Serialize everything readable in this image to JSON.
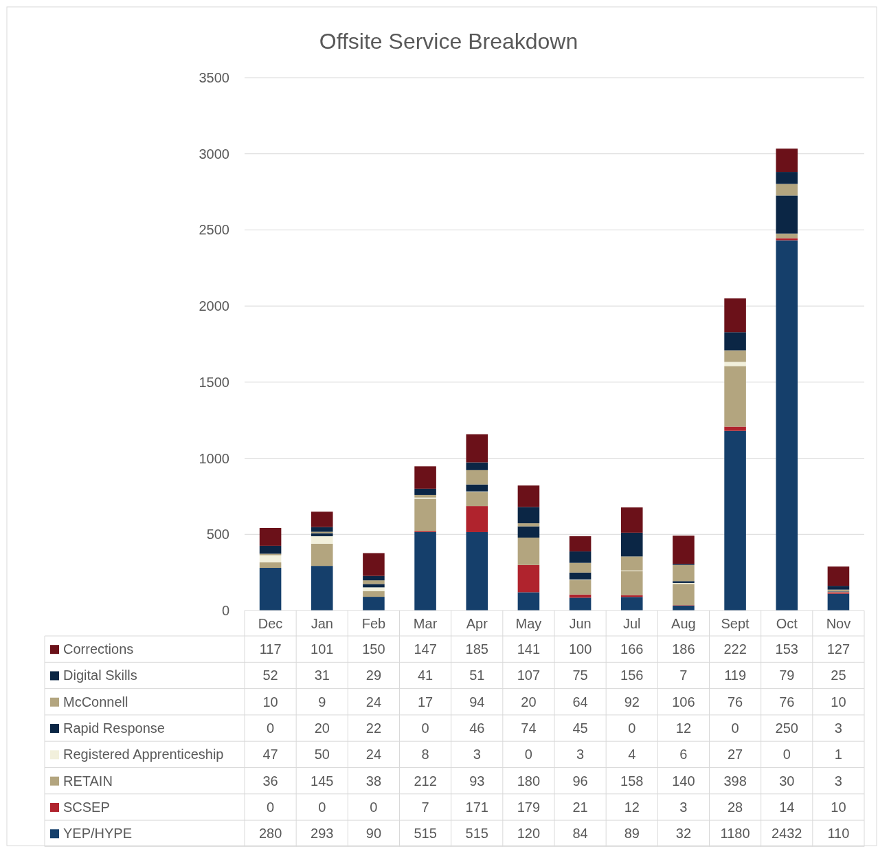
{
  "chart_data": {
    "type": "bar",
    "title": "Offsite Service Breakdown",
    "stacked": true,
    "categories": [
      "Dec",
      "Jan",
      "Feb",
      "Mar",
      "Apr",
      "May",
      "Jun",
      "Jul",
      "Aug",
      "Sept",
      "Oct",
      "Nov"
    ],
    "series": [
      {
        "name": "YEP/HYPE",
        "color": "#153f6b",
        "values": [
          280,
          293,
          90,
          515,
          515,
          120,
          84,
          89,
          32,
          1180,
          2432,
          110
        ]
      },
      {
        "name": "SCSEP",
        "color": "#b0232d",
        "values": [
          0,
          0,
          0,
          7,
          171,
          179,
          21,
          12,
          3,
          28,
          14,
          10
        ]
      },
      {
        "name": "RETAIN",
        "color": "#b3a57f",
        "values": [
          36,
          145,
          38,
          212,
          93,
          180,
          96,
          158,
          140,
          398,
          30,
          3
        ]
      },
      {
        "name": "Registered Apprenticeship",
        "color": "#f2f0dc",
        "values": [
          47,
          50,
          24,
          8,
          3,
          0,
          3,
          4,
          6,
          27,
          0,
          1
        ]
      },
      {
        "name": "Rapid Response",
        "color": "#0b2645",
        "values": [
          0,
          20,
          22,
          0,
          46,
          74,
          45,
          0,
          12,
          0,
          250,
          3
        ]
      },
      {
        "name": "McConnell",
        "color": "#b3a57f",
        "values": [
          10,
          9,
          24,
          17,
          94,
          20,
          64,
          92,
          106,
          76,
          76,
          10
        ]
      },
      {
        "name": "Digital Skills",
        "color": "#0b2645",
        "values": [
          52,
          31,
          29,
          41,
          51,
          107,
          75,
          156,
          7,
          119,
          79,
          25
        ]
      },
      {
        "name": "Corrections",
        "color": "#6b1119",
        "values": [
          117,
          101,
          150,
          147,
          185,
          141,
          100,
          166,
          186,
          222,
          153,
          127
        ]
      }
    ],
    "ylim": [
      0,
      3500
    ],
    "yticks": [
      0,
      500,
      1000,
      1500,
      2000,
      2500,
      3000,
      3500
    ],
    "grid": "y",
    "legend": "bottom",
    "data_labels": true
  }
}
